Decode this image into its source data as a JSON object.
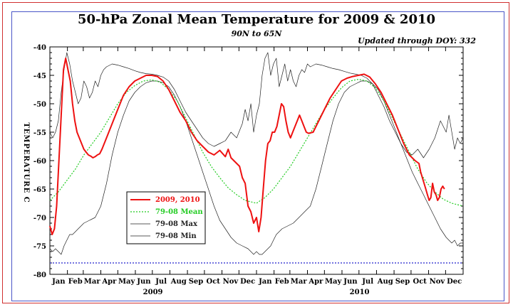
{
  "chart_data": {
    "type": "line",
    "title": "50-hPa Zonal Mean Temperature for 2009 & 2010",
    "subtitle": "90N to 65N",
    "note": "Updated through DOY: 332",
    "ylabel": "TEMPERATURE C",
    "ylim": [
      -80,
      -40
    ],
    "yticks": [
      -40,
      -45,
      -50,
      -55,
      -60,
      -65,
      -70,
      -75,
      -80
    ],
    "xlim": [
      0,
      730
    ],
    "month_labels": [
      "Jan",
      "Feb",
      "Mar",
      "Apr",
      "May",
      "Jun",
      "Jul",
      "Aug",
      "Sep",
      "Oct",
      "Nov",
      "Dec",
      "Jan",
      "Feb",
      "Mar",
      "Apr",
      "May",
      "Jun",
      "Jul",
      "Aug",
      "Sep",
      "Oct",
      "Nov",
      "Dec"
    ],
    "year_labels": [
      "2009",
      "2010"
    ],
    "reference_line": -78,
    "legend": {
      "placement": "lower-left",
      "entries": [
        "2009, 2010",
        "79-08 Mean",
        "79-08 Max",
        "79-08 Min"
      ]
    },
    "colors": {
      "obs": "#ee1111",
      "mean": "#22cc22",
      "max": "#222222",
      "min": "#222222",
      "ref": "#2222cc"
    },
    "series": [
      {
        "name": "2009, 2010",
        "x": [
          0,
          4,
          8,
          12,
          16,
          20,
          24,
          28,
          32,
          36,
          40,
          44,
          48,
          52,
          56,
          60,
          64,
          68,
          72,
          76,
          80,
          84,
          88,
          92,
          100,
          110,
          120,
          130,
          140,
          150,
          160,
          170,
          180,
          190,
          200,
          210,
          220,
          230,
          240,
          250,
          260,
          270,
          280,
          290,
          300,
          310,
          315,
          320,
          325,
          330,
          335,
          340,
          345,
          350,
          355,
          360,
          365,
          369,
          373,
          377,
          381,
          385,
          389,
          393,
          397,
          401,
          405,
          409,
          413,
          417,
          421,
          425,
          429,
          433,
          437,
          441,
          445,
          449,
          453,
          457,
          465,
          475,
          485,
          495,
          505,
          515,
          525,
          535,
          545,
          555,
          565,
          575,
          585,
          595,
          605,
          615,
          625,
          635,
          645,
          652,
          655,
          658,
          661,
          664,
          667,
          670,
          673,
          676,
          679,
          682,
          685,
          688,
          691,
          694,
          697
        ],
        "y": [
          -71.5,
          -73,
          -72,
          -68,
          -60,
          -52,
          -44,
          -42,
          -44,
          -46,
          -50,
          -53,
          -55,
          -56,
          -57,
          -58,
          -58.5,
          -59,
          -59.2,
          -59.5,
          -59.3,
          -59,
          -58.8,
          -58,
          -56,
          -53.5,
          -51,
          -48.5,
          -47,
          -46,
          -45.5,
          -45,
          -45,
          -45.2,
          -46,
          -47.5,
          -49.5,
          -51.5,
          -53,
          -55,
          -56.5,
          -57.5,
          -58.5,
          -59,
          -58.2,
          -59.3,
          -58,
          -59.5,
          -60,
          -60.5,
          -61,
          -63,
          -64,
          -68,
          -69,
          -71,
          -70,
          -72.5,
          -70,
          -65,
          -60,
          -57,
          -56.5,
          -55,
          -55,
          -54,
          -52,
          -50,
          -50.5,
          -53,
          -55,
          -56,
          -55,
          -54,
          -53,
          -52,
          -53,
          -54,
          -55,
          -55.2,
          -55,
          -53,
          -51,
          -49,
          -47.5,
          -46,
          -45.5,
          -45.2,
          -45,
          -44.8,
          -45.3,
          -46.5,
          -48,
          -50,
          -52,
          -54.5,
          -57,
          -59,
          -60,
          -60.5,
          -62,
          -63,
          -64,
          -65,
          -66,
          -67,
          -66.5,
          -64,
          -65.5,
          -66,
          -67,
          -66.5,
          -65,
          -64.5,
          -65
        ]
      },
      {
        "name": "79-08 Mean",
        "x": [
          0,
          15,
          30,
          45,
          60,
          75,
          90,
          105,
          120,
          135,
          150,
          165,
          180,
          195,
          210,
          225,
          240,
          255,
          270,
          285,
          300,
          315,
          330,
          345,
          365,
          380,
          395,
          410,
          425,
          440,
          455,
          470,
          485,
          500,
          515,
          530,
          545,
          560,
          575,
          590,
          605,
          620,
          635,
          650,
          665,
          680,
          695,
          710,
          730
        ],
        "y": [
          -67,
          -65.5,
          -63.5,
          -61.5,
          -59,
          -57,
          -55,
          -52.5,
          -50,
          -48,
          -46.8,
          -46,
          -45.8,
          -46.2,
          -47.5,
          -49.5,
          -52.5,
          -55.5,
          -58.5,
          -61,
          -63,
          -64.8,
          -66,
          -67,
          -67.5,
          -66.5,
          -65,
          -63,
          -61,
          -58.5,
          -56,
          -53.5,
          -51,
          -49,
          -47.2,
          -46,
          -45.7,
          -46,
          -47.2,
          -49.5,
          -52.5,
          -55.5,
          -58.5,
          -61.5,
          -63.8,
          -65.5,
          -66.8,
          -67.5,
          -68
        ]
      },
      {
        "name": "79-08 Max",
        "x": [
          0,
          5,
          10,
          15,
          20,
          25,
          30,
          35,
          40,
          45,
          50,
          55,
          60,
          65,
          70,
          75,
          80,
          85,
          90,
          95,
          100,
          110,
          120,
          130,
          140,
          150,
          160,
          170,
          180,
          190,
          200,
          210,
          220,
          230,
          240,
          250,
          260,
          270,
          280,
          290,
          300,
          310,
          320,
          330,
          340,
          345,
          350,
          355,
          360,
          365,
          370,
          375,
          380,
          385,
          390,
          395,
          400,
          405,
          410,
          415,
          420,
          425,
          430,
          435,
          440,
          445,
          450,
          455,
          460,
          470,
          480,
          490,
          500,
          510,
          520,
          530,
          540,
          550,
          560,
          570,
          580,
          590,
          600,
          610,
          620,
          630,
          640,
          650,
          660,
          670,
          680,
          690,
          700,
          705,
          710,
          715,
          720,
          725,
          730
        ],
        "y": [
          -55,
          -56,
          -55,
          -53,
          -48,
          -44,
          -41,
          -43,
          -46,
          -48,
          -50,
          -49,
          -46,
          -47,
          -49,
          -48,
          -46,
          -47,
          -45,
          -44,
          -43.5,
          -43,
          -43.2,
          -43.5,
          -43.8,
          -44.2,
          -44.5,
          -44.7,
          -44.8,
          -45,
          -45.3,
          -46,
          -47.5,
          -49.5,
          -51.5,
          -53,
          -54.5,
          -56,
          -57,
          -57.5,
          -57,
          -56.5,
          -55,
          -56,
          -53.5,
          -51,
          -53,
          -50,
          -55,
          -52,
          -50,
          -45,
          -42,
          -41,
          -45,
          -43,
          -42,
          -47,
          -45,
          -43,
          -46,
          -44,
          -46,
          -47,
          -45,
          -44,
          -44.5,
          -43,
          -43.5,
          -43,
          -43.2,
          -43.5,
          -43.8,
          -44,
          -44.3,
          -44.6,
          -44.8,
          -45,
          -45.5,
          -46.5,
          -48.5,
          -50.5,
          -53,
          -55,
          -57,
          -58.5,
          -59,
          -58,
          -59.5,
          -58,
          -56,
          -53,
          -55,
          -52,
          -55,
          -58,
          -56,
          -57,
          -56
        ]
      },
      {
        "name": "79-08 Min",
        "x": [
          0,
          5,
          10,
          15,
          20,
          25,
          30,
          35,
          40,
          45,
          50,
          60,
          70,
          80,
          90,
          100,
          110,
          120,
          130,
          140,
          150,
          160,
          170,
          180,
          190,
          200,
          210,
          220,
          230,
          240,
          250,
          260,
          270,
          280,
          290,
          300,
          310,
          320,
          330,
          340,
          350,
          355,
          360,
          365,
          370,
          375,
          380,
          385,
          390,
          395,
          400,
          410,
          420,
          430,
          440,
          450,
          460,
          470,
          480,
          490,
          500,
          510,
          520,
          530,
          540,
          550,
          560,
          570,
          580,
          590,
          600,
          610,
          620,
          630,
          640,
          650,
          660,
          670,
          680,
          690,
          700,
          705,
          710,
          715,
          720,
          725,
          730
        ],
        "y": [
          -75.5,
          -76,
          -75.5,
          -76,
          -76.5,
          -75,
          -74,
          -73,
          -73,
          -72.5,
          -72,
          -71,
          -70.5,
          -70,
          -68,
          -64,
          -59,
          -55,
          -52,
          -49.5,
          -48,
          -47,
          -46.3,
          -46,
          -46,
          -46.3,
          -47,
          -48.5,
          -50.5,
          -53,
          -56,
          -59,
          -62,
          -65,
          -68,
          -70.5,
          -72,
          -73.5,
          -74.5,
          -75,
          -75.5,
          -76,
          -76.5,
          -76,
          -76.5,
          -76.5,
          -76,
          -75.5,
          -75,
          -74,
          -73,
          -72,
          -71.5,
          -71,
          -70,
          -69,
          -68,
          -65,
          -61,
          -57,
          -53,
          -50,
          -48,
          -47,
          -46.5,
          -46,
          -46,
          -46.5,
          -47.5,
          -49.5,
          -52,
          -54.5,
          -57,
          -59.5,
          -62,
          -64,
          -66,
          -68,
          -70,
          -72,
          -73.5,
          -74,
          -74.5,
          -74,
          -75,
          -74.5,
          -74.5
        ]
      }
    ]
  }
}
